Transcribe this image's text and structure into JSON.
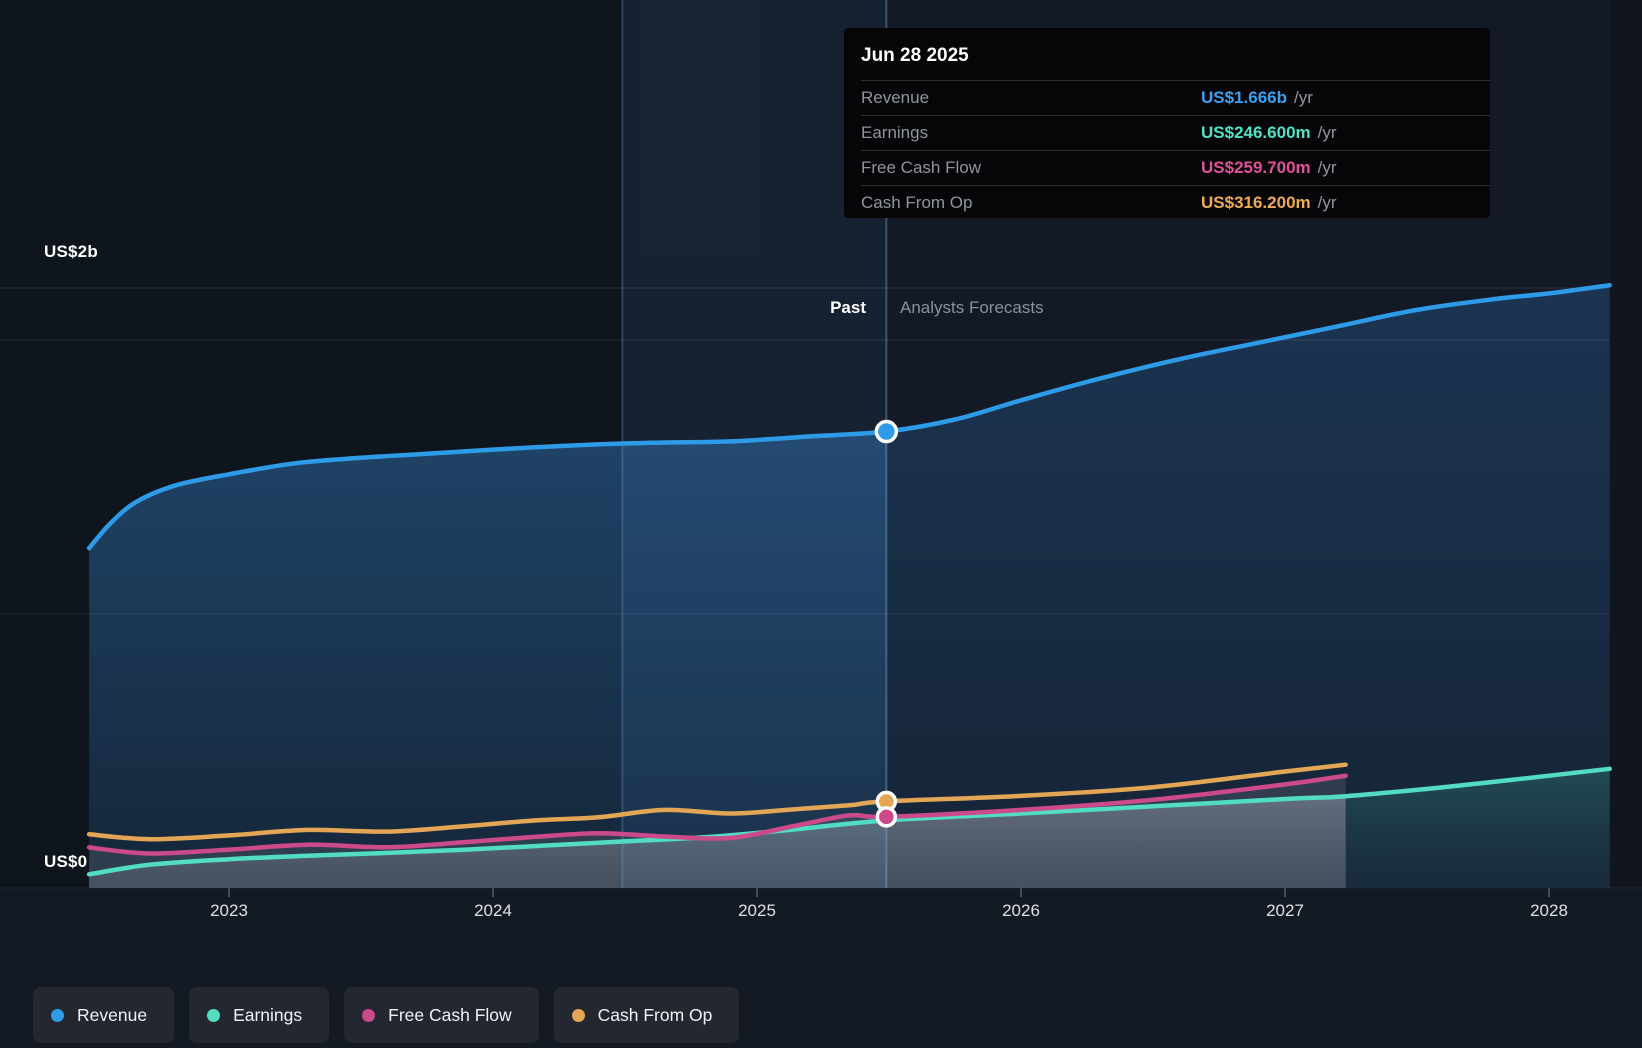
{
  "y_axis": {
    "top_label": "US$2b",
    "bottom_label": "US$0"
  },
  "timeline": {
    "past_label": "Past",
    "forecast_label": "Analysts Forecasts"
  },
  "tooltip": {
    "date": "Jun 28 2025",
    "rows": [
      {
        "label": "Revenue",
        "value": "US$1.666b",
        "suffix": "/yr",
        "color": "#3aa2f5"
      },
      {
        "label": "Earnings",
        "value": "US$246.600m",
        "suffix": "/yr",
        "color": "#4ee3c6"
      },
      {
        "label": "Free Cash Flow",
        "value": "US$259.700m",
        "suffix": "/yr",
        "color": "#e0519a"
      },
      {
        "label": "Cash From Op",
        "value": "US$316.200m",
        "suffix": "/yr",
        "color": "#efac52"
      }
    ]
  },
  "legend": [
    {
      "label": "Revenue",
      "color": "#2f9ce8"
    },
    {
      "label": "Earnings",
      "color": "#55dcc2"
    },
    {
      "label": "Free Cash Flow",
      "color": "#c94a89"
    },
    {
      "label": "Cash From Op",
      "color": "#e3a654"
    }
  ],
  "chart_data": {
    "type": "line",
    "title": "Earnings and Revenue Growth",
    "x_unit": "year",
    "xlim": [
      2022.47,
      2028.23
    ],
    "ylim": [
      0,
      2.4
    ],
    "y_unit": "US$ billions",
    "grid": "horizontal",
    "gridlines_b": [
      0,
      1,
      2
    ],
    "x_ticks": [
      2023,
      2024,
      2025,
      2026,
      2027,
      2028
    ],
    "x_tick_labels": [
      "2023",
      "2024",
      "2025",
      "2026",
      "2027",
      "2028"
    ],
    "divider_x": 2025.49,
    "divider_date": "Jun 28 2025",
    "highlight_band_x": [
      2024.49,
      2025.49
    ],
    "legend_position": "bottom",
    "series": [
      {
        "key": "revenue",
        "name": "Revenue",
        "color": "#2e9be8",
        "x": [
          2022.47,
          2022.55,
          2022.65,
          2022.8,
          2023.0,
          2023.25,
          2023.5,
          2023.75,
          2024.0,
          2024.3,
          2024.6,
          2024.9,
          2025.2,
          2025.49,
          2025.75,
          2026.0,
          2026.3,
          2026.6,
          2026.9,
          2027.2,
          2027.5,
          2027.8,
          2028.0,
          2028.23
        ],
        "values": [
          1.24,
          1.33,
          1.41,
          1.47,
          1.51,
          1.55,
          1.57,
          1.585,
          1.6,
          1.615,
          1.625,
          1.63,
          1.648,
          1.666,
          1.71,
          1.78,
          1.86,
          1.93,
          1.99,
          2.05,
          2.11,
          2.15,
          2.17,
          2.2
        ]
      },
      {
        "key": "earnings",
        "name": "Earnings",
        "color": "#52dcc1",
        "x": [
          2022.47,
          2022.7,
          2023.0,
          2023.3,
          2023.6,
          2023.9,
          2024.2,
          2024.5,
          2024.8,
          2025.1,
          2025.49,
          2026.0,
          2026.5,
          2027.0,
          2027.23,
          2027.6,
          2028.0,
          2028.23
        ],
        "values": [
          0.05,
          0.085,
          0.105,
          0.118,
          0.128,
          0.14,
          0.155,
          0.17,
          0.185,
          0.21,
          0.2466,
          0.272,
          0.298,
          0.325,
          0.335,
          0.368,
          0.41,
          0.435
        ]
      },
      {
        "key": "free_cash_flow",
        "name": "Free Cash Flow",
        "color": "#cc4a89",
        "x": [
          2022.47,
          2022.7,
          2023.0,
          2023.3,
          2023.6,
          2023.9,
          2024.15,
          2024.4,
          2024.65,
          2024.9,
          2025.15,
          2025.35,
          2025.49,
          2026.0,
          2026.5,
          2027.0,
          2027.23
        ],
        "values": [
          0.148,
          0.126,
          0.14,
          0.158,
          0.149,
          0.168,
          0.186,
          0.2,
          0.188,
          0.183,
          0.228,
          0.265,
          0.2597,
          0.285,
          0.322,
          0.378,
          0.41
        ]
      },
      {
        "key": "cash_from_op",
        "name": "Cash From Op",
        "color": "#e3a654",
        "x": [
          2022.47,
          2022.7,
          2023.0,
          2023.3,
          2023.6,
          2023.9,
          2024.15,
          2024.4,
          2024.65,
          2024.9,
          2025.15,
          2025.35,
          2025.49,
          2026.0,
          2026.5,
          2027.0,
          2027.23
        ],
        "values": [
          0.196,
          0.178,
          0.192,
          0.212,
          0.206,
          0.226,
          0.246,
          0.258,
          0.285,
          0.272,
          0.288,
          0.302,
          0.3162,
          0.336,
          0.368,
          0.425,
          0.45
        ]
      }
    ],
    "markers": [
      {
        "series": "revenue",
        "x": 2025.49,
        "value": 1.666,
        "r": 10
      },
      {
        "series": "cash_from_op",
        "x": 2025.49,
        "value": 0.3162,
        "r": 9
      },
      {
        "series": "free_cash_flow",
        "x": 2025.49,
        "value": 0.2597,
        "r": 9
      }
    ]
  }
}
